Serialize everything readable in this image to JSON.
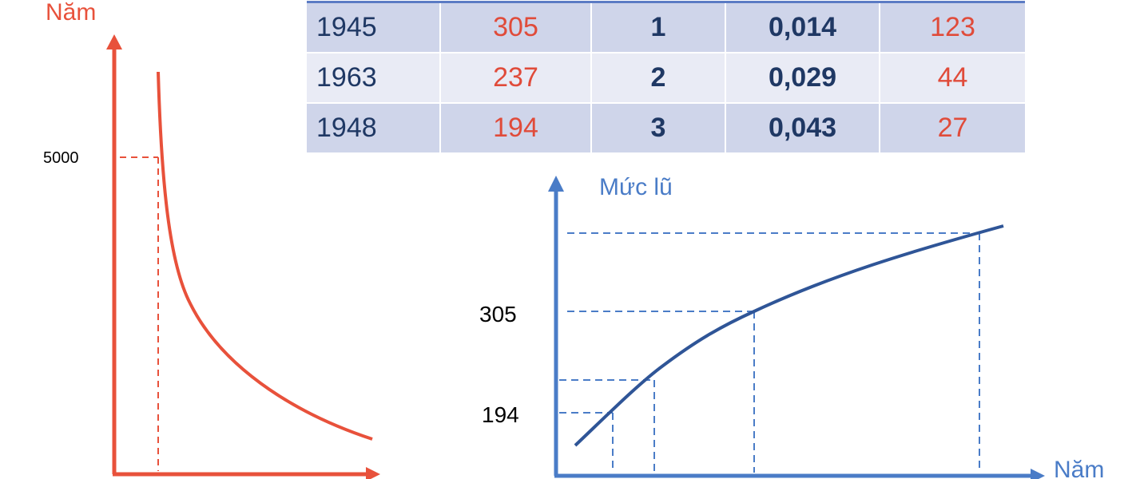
{
  "colors": {
    "left_chart": "#e8513b",
    "right_axis": "#4a7cc7",
    "right_curve": "#2f5597",
    "table_text_dark": "#1f3864",
    "table_text_red": "#e04b3a",
    "table_row_odd": "#cfd5ea",
    "table_row_even": "#e9ebf5"
  },
  "left_chart": {
    "y_axis_label": "Năm",
    "ref_tick_label": "5000"
  },
  "table": {
    "rows": [
      {
        "year": "1945",
        "level": "305",
        "rank": "1",
        "frequency": "0,014",
        "return_period": "123"
      },
      {
        "year": "1963",
        "level": "237",
        "rank": "2",
        "frequency": "0,029",
        "return_period": "44"
      },
      {
        "year": "1948",
        "level": "194",
        "rank": "3",
        "frequency": "0,043",
        "return_period": "27"
      }
    ]
  },
  "right_chart": {
    "y_axis_label": "Mức lũ",
    "x_axis_label": "Năm",
    "tick_labels": [
      "305",
      "194"
    ]
  }
}
